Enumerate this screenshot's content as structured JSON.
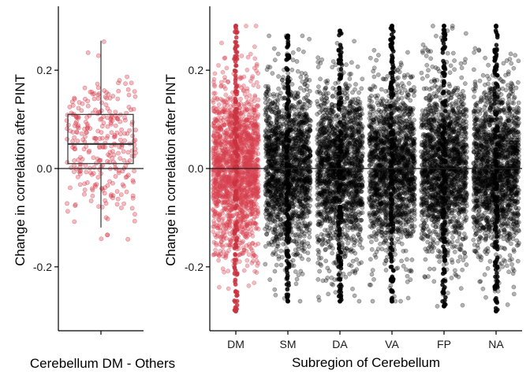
{
  "chart_data": [
    {
      "type": "boxplot",
      "panel": "left",
      "xlabel": "Cerebellum DM - Others",
      "ylabel": "Change in correlation after PINT",
      "ylim": [
        -0.33,
        0.33
      ],
      "y_ticks": [
        "0.2",
        "0.0",
        "-0.2"
      ],
      "y_tick_values": [
        0.2,
        0.0,
        -0.2
      ],
      "reference_line_y": 0.0,
      "box": {
        "whisker_low": -0.12,
        "q1": 0.01,
        "median": 0.05,
        "q3": 0.11,
        "whisker_high": 0.26
      },
      "points": {
        "count": 300,
        "y_min": -0.15,
        "y_max": 0.29,
        "color": "#d6404e"
      },
      "grid": false,
      "legend": "none"
    },
    {
      "type": "scatter",
      "panel": "right",
      "xlabel": "Subregion of Cerebellum",
      "ylabel": "Change in correlation after PINT",
      "ylim": [
        -0.33,
        0.33
      ],
      "y_ticks": [
        "0.2",
        "0.0",
        "-0.2"
      ],
      "y_tick_values": [
        0.2,
        0.0,
        -0.2
      ],
      "reference_line_y": 0.0,
      "categories": [
        "DM",
        "SM",
        "DA",
        "VA",
        "FP",
        "NA"
      ],
      "series": [
        {
          "category": "DM",
          "y_min": -0.29,
          "y_max": 0.29,
          "color": "#d6404e"
        },
        {
          "category": "SM",
          "y_min": -0.27,
          "y_max": 0.27,
          "color": "#000000"
        },
        {
          "category": "DA",
          "y_min": -0.27,
          "y_max": 0.28,
          "color": "#000000"
        },
        {
          "category": "VA",
          "y_min": -0.27,
          "y_max": 0.29,
          "color": "#000000"
        },
        {
          "category": "FP",
          "y_min": -0.28,
          "y_max": 0.29,
          "color": "#000000"
        },
        {
          "category": "NA",
          "y_min": -0.29,
          "y_max": 0.29,
          "color": "#000000"
        }
      ],
      "grid": false,
      "legend": "none"
    }
  ]
}
